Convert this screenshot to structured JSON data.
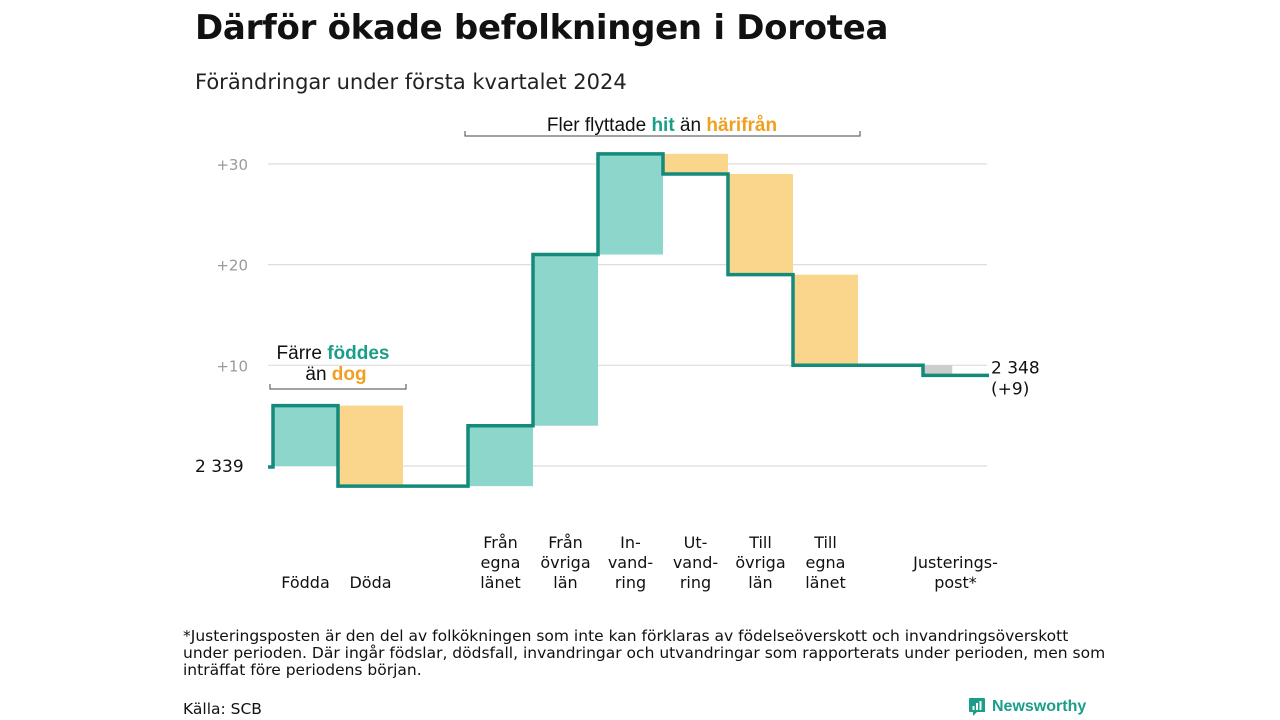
{
  "title": "Därför ökade befolkningen i Dorotea",
  "subtitle": "Förändringar under första kvartalet 2024",
  "colors": {
    "increase": "#8dd6cc",
    "decrease": "#fad68d",
    "adjustment": "#cccccc",
    "line": "#148a7b",
    "accent_teal": "#1a9e8a",
    "accent_orange": "#f0a020",
    "grid": "#dddddd"
  },
  "chart_data": {
    "type": "bar",
    "subtype": "waterfall",
    "start": {
      "label": "2 339",
      "value": 0
    },
    "end": {
      "label": "2 348",
      "change_label": "(+9)",
      "value": 9
    },
    "yticks": [
      {
        "value": 30,
        "label": "+30"
      },
      {
        "value": 20,
        "label": "+20"
      },
      {
        "value": 10,
        "label": "+10"
      }
    ],
    "ylim": [
      -3,
      31
    ],
    "grid": true,
    "steps": [
      {
        "id": "fodda",
        "label_lines": [
          "Födda"
        ],
        "change": 6,
        "kind": "increase"
      },
      {
        "id": "doda",
        "label_lines": [
          "Döda"
        ],
        "change": -8,
        "kind": "decrease"
      },
      {
        "id": "gap",
        "label_lines": [],
        "change": 0,
        "kind": "gap"
      },
      {
        "id": "fran-egna-lanet",
        "label_lines": [
          "Från",
          "egna",
          "länet"
        ],
        "change": 6,
        "kind": "increase"
      },
      {
        "id": "fran-ovriga-lan",
        "label_lines": [
          "Från",
          "övriga",
          "län"
        ],
        "change": 17,
        "kind": "increase"
      },
      {
        "id": "invandring",
        "label_lines": [
          "In-",
          "vand-",
          "ring"
        ],
        "change": 10,
        "kind": "increase"
      },
      {
        "id": "utvandring",
        "label_lines": [
          "Ut-",
          "vand-",
          "ring"
        ],
        "change": -2,
        "kind": "decrease"
      },
      {
        "id": "till-ovriga-lan",
        "label_lines": [
          "Till",
          "övriga",
          "län"
        ],
        "change": -10,
        "kind": "decrease"
      },
      {
        "id": "till-egna-lanet",
        "label_lines": [
          "Till",
          "egna",
          "länet"
        ],
        "change": -9,
        "kind": "decrease"
      },
      {
        "id": "gap2",
        "label_lines": [],
        "change": 0,
        "kind": "gap"
      },
      {
        "id": "justeringspost",
        "label_lines": [
          "Justerings-",
          "post*"
        ],
        "change": -1,
        "kind": "adjustment"
      }
    ],
    "annotations": [
      {
        "id": "births-deaths",
        "line1": [
          "Färre ",
          "föddes"
        ],
        "line2": [
          "än ",
          "dog"
        ]
      },
      {
        "id": "migration",
        "parts": [
          "Fler flyttade ",
          "hit",
          " än ",
          "härifrån"
        ]
      }
    ]
  },
  "footnote": "*Justeringsposten är den del av folkökningen som inte kan förklaras av födelseöverskott och invandringsöverskott under perioden. Där ingår födslar, dödsfall, invandringar och utvandringar som rapporterats under perioden, men som inträffat före periodens början.",
  "source": "Källa: SCB",
  "brand": {
    "name": "Newsworthy",
    "icon": "newsworthy-logo-icon"
  }
}
